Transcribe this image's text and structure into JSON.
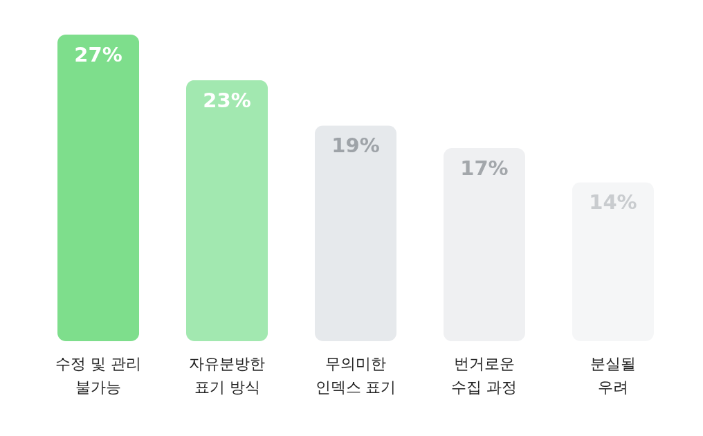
{
  "chart_data": {
    "type": "bar",
    "categories": [
      "수정 및 관리\n불가능",
      "자유분방한\n표기 방식",
      "무의미한\n인덱스 표기",
      "번거로운\n수집 과정",
      "분실될\n우려"
    ],
    "values": [
      27,
      23,
      19,
      17,
      14
    ],
    "value_labels": [
      "27%",
      "23%",
      "19%",
      "17%",
      "14%"
    ],
    "colors": [
      "#7ede8c",
      "#a2e8b0",
      "#e6e9ec",
      "#eff0f2",
      "#f5f6f7"
    ],
    "grid": false
  }
}
